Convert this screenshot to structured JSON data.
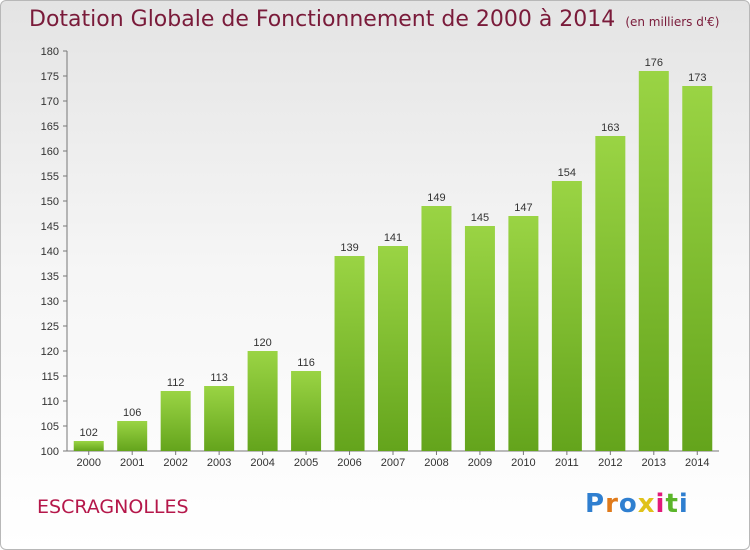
{
  "header": {
    "title": "Dotation Globale de Fonctionnement de 2000 à 2014",
    "subtitle": "(en milliers d'€)"
  },
  "footer": {
    "commune": "ESCRAGNOLLES",
    "logo_text": "Proxiti",
    "logo_colors": [
      "#2f7fd0",
      "#e07a1a",
      "#2f7fd0",
      "#e0c21a",
      "#e21a7a",
      "#5bb52a",
      "#2f7fd0"
    ]
  },
  "colors": {
    "bar_top": "#9ad444",
    "bar_bottom": "#64a41c",
    "title": "#7a1b3a",
    "commune": "#b5174a"
  },
  "chart_data": {
    "type": "bar",
    "title": "Dotation Globale de Fonctionnement de 2000 à 2014",
    "subtitle": "(en milliers d'€)",
    "categories": [
      "2000",
      "2001",
      "2002",
      "2003",
      "2004",
      "2005",
      "2006",
      "2007",
      "2008",
      "2009",
      "2010",
      "2011",
      "2012",
      "2013",
      "2014"
    ],
    "values": [
      102,
      106,
      112,
      113,
      120,
      116,
      139,
      141,
      149,
      145,
      147,
      154,
      163,
      176,
      173
    ],
    "ylim": [
      100,
      180
    ],
    "yticks": [
      100,
      105,
      110,
      115,
      120,
      125,
      130,
      135,
      140,
      145,
      150,
      155,
      160,
      165,
      170,
      175,
      180
    ],
    "xlabel": "",
    "ylabel": "",
    "grid": false,
    "data_labels": true
  }
}
